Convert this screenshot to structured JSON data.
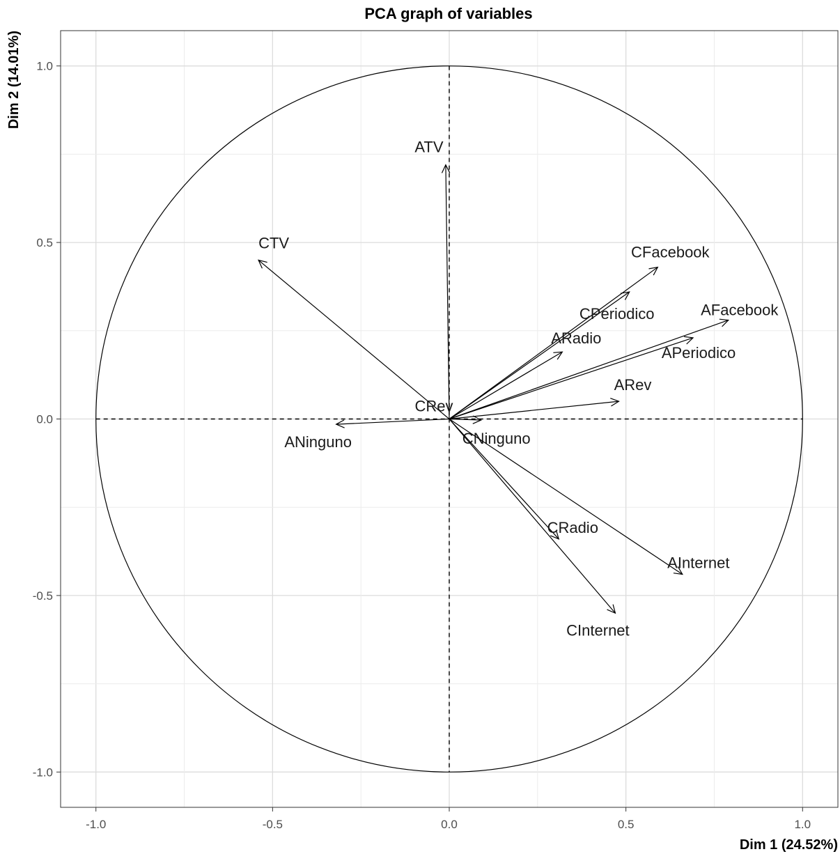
{
  "chart_data": {
    "type": "scatter",
    "title": "PCA graph of variables",
    "xlabel": "Dim 1 (24.52%)",
    "ylabel": "Dim 2 (14.01%)",
    "xlim": [
      -1.1,
      1.1
    ],
    "ylim": [
      -1.1,
      1.1
    ],
    "xticks": [
      -1.0,
      -0.5,
      0.0,
      0.5,
      1.0
    ],
    "yticks": [
      -1.0,
      -0.5,
      0.0,
      0.5,
      1.0
    ],
    "xtick_labels": [
      "-1.0",
      "-0.5",
      "0.0",
      "0.5",
      "1.0"
    ],
    "ytick_labels": [
      "-1.0",
      "-0.5",
      "0.0",
      "0.5",
      "1.0"
    ],
    "grid": true,
    "correlation_circle": true,
    "variables": [
      {
        "name": "ATV",
        "x": -0.01,
        "y": 0.72
      },
      {
        "name": "CTV",
        "x": -0.54,
        "y": 0.45
      },
      {
        "name": "CFacebook",
        "x": 0.59,
        "y": 0.43
      },
      {
        "name": "CPeriodico",
        "x": 0.51,
        "y": 0.36
      },
      {
        "name": "AFacebook",
        "x": 0.79,
        "y": 0.28
      },
      {
        "name": "ARadio",
        "x": 0.32,
        "y": 0.19
      },
      {
        "name": "APeriodico",
        "x": 0.69,
        "y": 0.23
      },
      {
        "name": "ARev",
        "x": 0.48,
        "y": 0.05
      },
      {
        "name": "CRev",
        "x": 0.0,
        "y": 0.0
      },
      {
        "name": "ANinguno",
        "x": -0.32,
        "y": -0.015
      },
      {
        "name": "CNinguno",
        "x": 0.09,
        "y": -0.003
      },
      {
        "name": "CRadio",
        "x": 0.31,
        "y": -0.34
      },
      {
        "name": "AInternet",
        "x": 0.66,
        "y": -0.44
      },
      {
        "name": "CInternet",
        "x": 0.47,
        "y": -0.55
      }
    ]
  }
}
